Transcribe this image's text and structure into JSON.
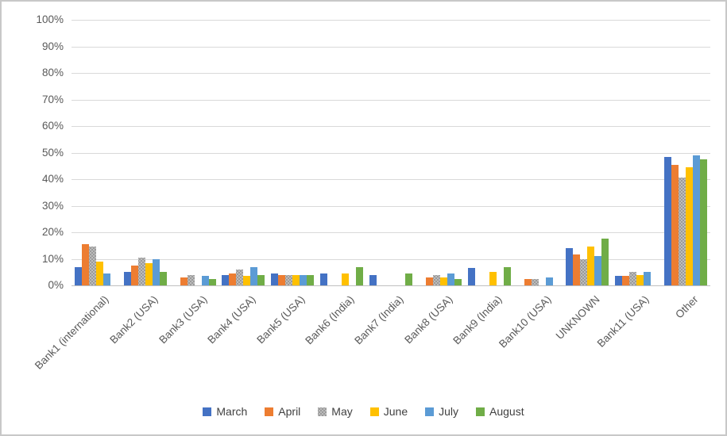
{
  "chart_data": {
    "type": "bar",
    "title": "",
    "xlabel": "",
    "ylabel": "",
    "ylim": [
      0,
      100
    ],
    "ytick_step": 10,
    "ytick_format": "percent",
    "grid": true,
    "legend_position": "bottom",
    "y_ticks": [
      "100%",
      "90%",
      "80%",
      "70%",
      "60%",
      "50%",
      "40%",
      "30%",
      "20%",
      "10%",
      "0%"
    ],
    "categories": [
      "Bank1 (international)",
      "Bank2 (USA)",
      "Bank3 (USA)",
      "Bank4 (USA)",
      "Bank5 (USA)",
      "Bank6 (India)",
      "Bank7 (India)",
      "Bank8 (USA)",
      "Bank9 (India)",
      "Bank10 (USA)",
      "UNKNOWN",
      "Bank11 (USA)",
      "Other"
    ],
    "series": [
      {
        "name": "March",
        "color": "#4472C4",
        "pattern": "solid",
        "values": [
          7,
          5,
          0,
          4,
          4.5,
          4.5,
          4,
          0,
          6.5,
          0,
          14,
          3.5,
          48.5
        ]
      },
      {
        "name": "April",
        "color": "#ED7D31",
        "pattern": "solid",
        "values": [
          15.5,
          7.5,
          3,
          4.5,
          4,
          0,
          0,
          3,
          0,
          2.5,
          11.5,
          3.5,
          45.5
        ]
      },
      {
        "name": "May",
        "color": "#A5A5A5",
        "pattern": "dots",
        "values": [
          14.5,
          10.5,
          4,
          6,
          4,
          0,
          0,
          4,
          0,
          2.5,
          10,
          5,
          40.5
        ]
      },
      {
        "name": "June",
        "color": "#FFC000",
        "pattern": "solid",
        "values": [
          9,
          8.5,
          0,
          3.5,
          4,
          4.5,
          0,
          3,
          5,
          0,
          14.5,
          4,
          44.5
        ]
      },
      {
        "name": "July",
        "color": "#5B9BD5",
        "pattern": "solid",
        "values": [
          4.5,
          10,
          3.5,
          7,
          4,
          0,
          0,
          4.5,
          0,
          3,
          11,
          5,
          49
        ]
      },
      {
        "name": "August",
        "color": "#70AD47",
        "pattern": "solid",
        "values": [
          0,
          5,
          2.5,
          4,
          4,
          7,
          4.5,
          2.5,
          7,
          0,
          17.5,
          0,
          47.5
        ]
      }
    ]
  },
  "colors": {
    "background": "#FFFFFF",
    "border": "#C8C8C8",
    "gridline": "#D9D9D9",
    "axis_line": "#BFBFBF",
    "tick_text": "#595959",
    "legend_text": "#404040"
  }
}
